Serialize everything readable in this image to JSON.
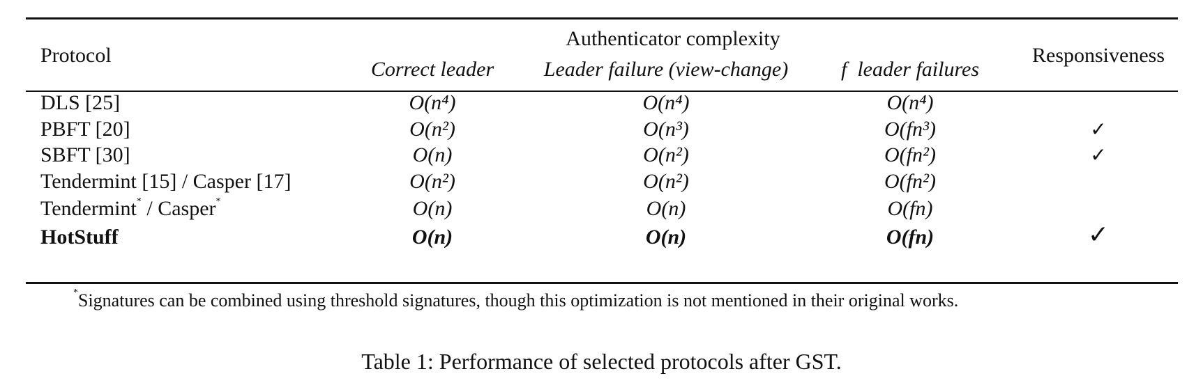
{
  "table": {
    "group_header": "Authenticator complexity",
    "headers": {
      "protocol": "Protocol",
      "correct_leader": "Correct leader",
      "leader_failure": "Leader failure (view-change)",
      "f_leader_failures": "leader failures",
      "f_symbol": "f",
      "responsiveness": "Responsiveness"
    },
    "rows": [
      {
        "protocol": "DLS [25]",
        "c1": "O(n⁴)",
        "c2": "O(n⁴)",
        "c3": "O(n⁴)",
        "responsive": ""
      },
      {
        "protocol": "PBFT [20]",
        "c1": "O(n²)",
        "c2": "O(n³)",
        "c3": "O(fn³)",
        "responsive": "✓"
      },
      {
        "protocol": "SBFT [30]",
        "c1": "O(n)",
        "c2": "O(n²)",
        "c3": "O(fn²)",
        "responsive": "✓"
      },
      {
        "protocol": "Tendermint [15] / Casper [17]",
        "c1": "O(n²)",
        "c2": "O(n²)",
        "c3": "O(fn²)",
        "responsive": ""
      },
      {
        "protocol_a": "Tendermint",
        "protocol_b": " / Casper",
        "star": "*",
        "c1": "O(n)",
        "c2": "O(n)",
        "c3": "O(fn)",
        "responsive": ""
      },
      {
        "protocol": "HotStuff",
        "c1": "O(n)",
        "c2": "O(n)",
        "c3": "O(fn)",
        "responsive": "✓"
      }
    ]
  },
  "footnote": {
    "marker": "*",
    "text": "Signatures can be combined using threshold signatures, though this optimization is not mentioned in their original works."
  },
  "caption": "Table 1: Performance of selected protocols after GST."
}
